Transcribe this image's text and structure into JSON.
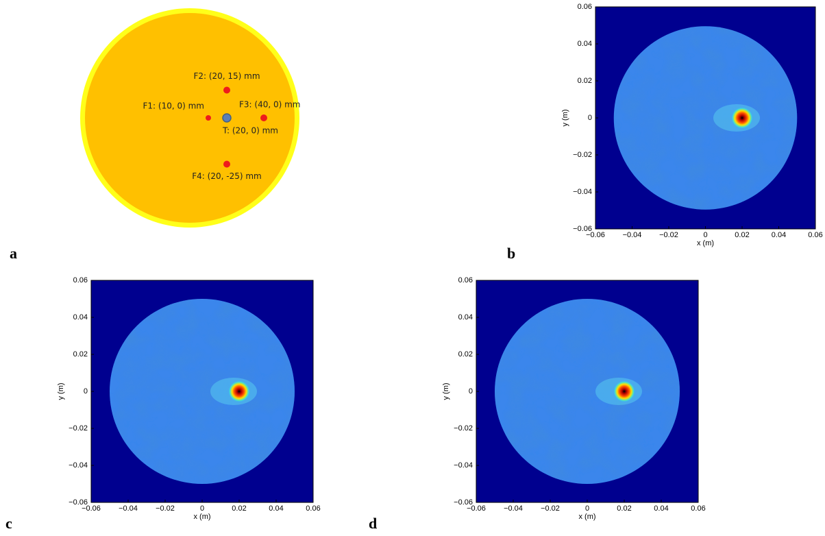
{
  "chart_data": [
    {
      "type": "scatter",
      "label": "a",
      "x": [
        20,
        10,
        40,
        20,
        20
      ],
      "y": [
        15,
        0,
        0,
        0,
        -25
      ],
      "labels": [
        "F2: (20, 15) mm",
        "F1: (10, 0) mm",
        "F3: (40, 0) mm",
        "T: (20, 0) mm",
        "F4: (20, -25) mm"
      ],
      "colors": [
        "#ee1c1c",
        "#ee1c1c",
        "#ee1c1c",
        "#5b7fb8",
        "#ee1c1c"
      ]
    },
    {
      "type": "heatmap",
      "label": "b",
      "xlabel": "x (m)",
      "ylabel": "y (m)",
      "xlim": [
        -0.06,
        0.06
      ],
      "ylim": [
        -0.06,
        0.06
      ],
      "xticks": [
        {
          "value": -0.06,
          "label": "−0.06"
        },
        {
          "value": -0.04,
          "label": "−0.04"
        },
        {
          "value": -0.02,
          "label": "−0.02"
        },
        0,
        0.02,
        0.04,
        0.06
      ],
      "yticks": [
        {
          "value": -0.06,
          "label": "−0.06"
        },
        {
          "value": -0.04,
          "label": "−0.04"
        },
        {
          "value": -0.02,
          "label": "−0.02"
        },
        0,
        0.02,
        0.04,
        0.06
      ],
      "x": [
        0.02
      ],
      "y": [
        0
      ]
    },
    {
      "type": "heatmap",
      "label": "c",
      "xlabel": "x (m)",
      "ylabel": "y (m)",
      "xlim": [
        -0.06,
        0.06
      ],
      "ylim": [
        -0.06,
        0.06
      ],
      "xticks": [
        {
          "value": -0.06,
          "label": "−0.06"
        },
        {
          "value": -0.04,
          "label": "−0.04"
        },
        {
          "value": -0.02,
          "label": "−0.02"
        },
        0,
        0.02,
        0.04,
        0.06
      ],
      "yticks": [
        {
          "value": -0.06,
          "label": "−0.06"
        },
        {
          "value": -0.04,
          "label": "−0.04"
        },
        {
          "value": -0.02,
          "label": "−0.02"
        },
        0,
        0.02,
        0.04,
        0.06
      ],
      "x": [
        0.02
      ],
      "y": [
        0
      ]
    },
    {
      "type": "heatmap",
      "label": "d",
      "xlabel": "x (m)",
      "ylabel": "y (m)",
      "xlim": [
        -0.06,
        0.06
      ],
      "ylim": [
        -0.06,
        0.06
      ],
      "xticks": [
        {
          "value": -0.06,
          "label": "−0.06"
        },
        {
          "value": -0.04,
          "label": "−0.04"
        },
        {
          "value": -0.02,
          "label": "−0.02"
        },
        0,
        0.02,
        0.04,
        0.06
      ],
      "yticks": [
        {
          "value": -0.06,
          "label": "−0.06"
        },
        {
          "value": -0.04,
          "label": "−0.04"
        },
        {
          "value": -0.02,
          "label": "−0.02"
        },
        0,
        0.02,
        0.04,
        0.06
      ],
      "x": [
        0.02
      ],
      "y": [
        0
      ]
    }
  ]
}
